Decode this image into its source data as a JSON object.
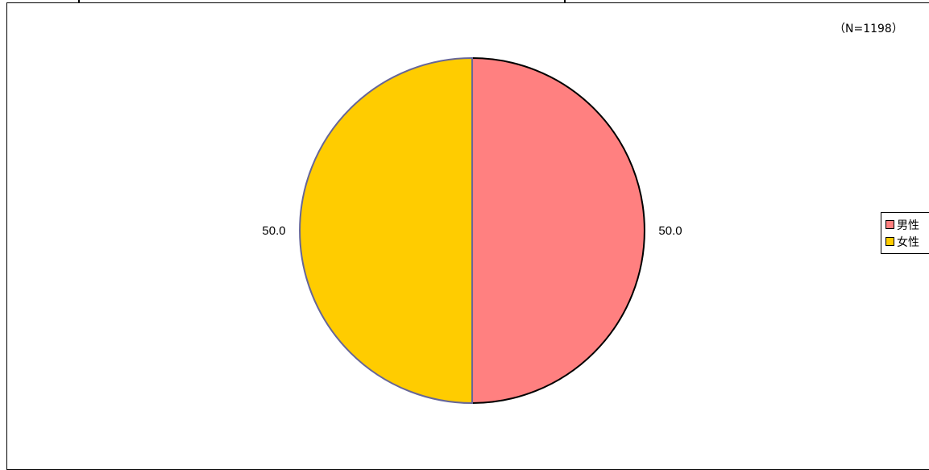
{
  "sample_note": "（N=1198）",
  "chart_data": {
    "type": "pie",
    "title": "",
    "series": [
      {
        "name": "",
        "categories": [
          "男性",
          "女性"
        ],
        "values": [
          50.0,
          50.0
        ],
        "labels": [
          "50.0",
          "50.0"
        ],
        "colors": [
          "#ff8080",
          "#ffcc00"
        ]
      }
    ],
    "start_angle_deg": 0,
    "direction": "clockwise",
    "legend_position": "right",
    "outline_colors": {
      "男性": "#000000",
      "女性": "#666699"
    }
  }
}
